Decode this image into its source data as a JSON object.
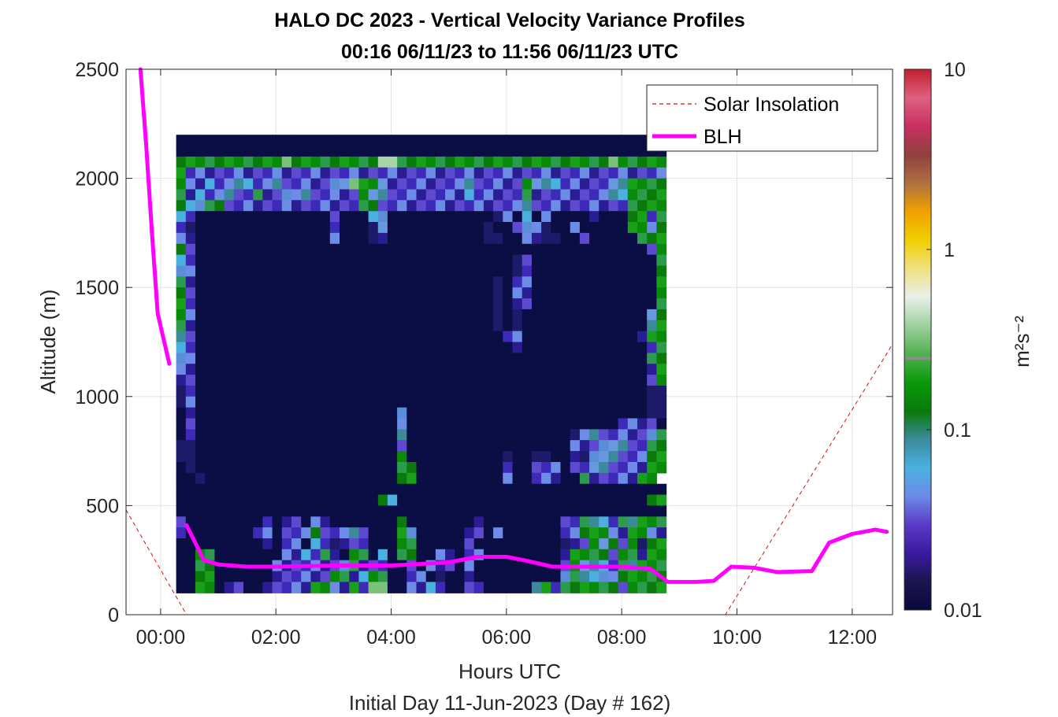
{
  "chart_data": {
    "type": "heatmap",
    "title": "HALO DC 2023 - Vertical Velocity Variance Profiles",
    "subtitle": "00:16 06/11/23 to 11:56 06/11/23  UTC",
    "xlabel": "Hours UTC",
    "xlabel2": "Initial Day 11-Jun-2023 (Day # 162)",
    "ylabel": "Altitude (m)",
    "xlim": [
      -0.6,
      12.7
    ],
    "ylim": [
      0,
      2500
    ],
    "x_ticks": [
      0,
      2,
      4,
      6,
      8,
      10,
      12
    ],
    "x_tick_labels": [
      "00:00",
      "02:00",
      "04:00",
      "06:00",
      "08:00",
      "10:00",
      "12:00"
    ],
    "y_ticks": [
      0,
      500,
      1000,
      1500,
      2000,
      2500
    ],
    "y_tick_labels": [
      "0",
      "500",
      "1000",
      "1500",
      "2000",
      "2500"
    ],
    "grid": true,
    "colorbar": {
      "label": "m²s⁻²",
      "scale": "log",
      "range": [
        0.01,
        10
      ],
      "tick_values": [
        0.01,
        0.1,
        1,
        10
      ],
      "tick_labels": [
        "0.01",
        "0.1",
        "1",
        "10"
      ],
      "colors": [
        "#0a0a3c",
        "#1c1450",
        "#3a1aa0",
        "#5a3ac8",
        "#6c8ce8",
        "#4ab0e0",
        "#3a8a9a",
        "#0a7a0a",
        "#0a9a0a",
        "#50b050",
        "#a0d0a0",
        "#e8f0e8",
        "#f0e080",
        "#f0d000",
        "#f0a000",
        "#b07040",
        "#904040",
        "#c83060",
        "#e06080",
        "#c02030"
      ]
    },
    "heatmap": {
      "x_start": 0.27,
      "x_step": 0.1667,
      "y_start": 100,
      "y_step": 50,
      "rows_bottom_to_top": true,
      "note": "values are log10 of variance (m2 s-2)",
      "grid_rows": [
        "...................................................",
        ".;;;;;;;;;;;;;;;;;;;;;;;;;;;;;;;;;;;;;;;;;;;;;;;;;;",
        "GGGGGGGGGGGHGGGGGGGGGSSGGGGGGGGGGGGGGGGGGGGGGHGGGGG",
        "G%%%%%%%%%%%%%%%%%%%%%%%%%%%%%%%%%%%%%%%%%%%%%%%%%%",
        "G%%T%%TT%%T%%%%%TTHGGT%%%%%%%%T%%%%%GTTT%%%%%TTGGGG",
        "G%T%%T%%G%%T%T%%%%%GTT%%%%%%%%T%%%%%G%%%%%%%%TTGGGG",
        "GTTGG%%%%%%%%%%%%%%GG%%%%%%%%%%%%%%%T%%%%%%%%%%GGGG",
        "T%..............%...TT...........:%.T.%....%...GG%G",
        "%:..............%...:T..........:..%T%:..%.....GG%G",
        "%%..............%...:%..........::..%%::..%.....GGG",
        "G%...............................................%G",
        "T%.................................:%.............G",
        "T%.................................:%.............G",
        "G%...............................:.%%.............G",
        "G%...............................:.%%.............G",
        "G%...............................:.%%.............G",
        "G%...............................:.:.............TG",
        "G%...............................:.:.............TG",
        "T%................................%%............%GG",
        "T%.................................%.............%G",
        "T%...............................................GG",
        "%%...............................................%G",
        "%%...............................................%G",
        ":%...............................................::",
        ":%...............................................::",
        ".%.....................T.........................::",
        ".%.....................%......................%%%%.",
        ".%.....................T.................:%T%%%%%TG",
        "::.....................%.................%%%TTT%%GG",
        "::.....................G..........:..::..%:TTT%%%GG",
        ".:.....................GG.........%..%%%.%%TT%%%%GG",
        "..:....................GG.........%..%%%..G%%%%%GG",
        "...................................................",
        ".....................GT..........................GG",
        "...................................................",
        "%........%.%%.%%.......G.......%........%%GTT%GTGGG",
        "%.......%%.%%%G%%%T%...GT.....%%.%......%%GGG%%GG%%",
        ".........%.%%.T%:%%%...GG.....%.........:%%GTG%G:GG",
        "..GG.......%%T%G%.GG.T.GG..%%.%%........%GGGG%GG%GG",
        "..GG......%%%%%%%TG%%%..%.%%%.%.........%GTTT%GTGGG",
        "..GG......%%%%%%GG%TGG..%%.:..%.........TGTTT%GGGGG",
        "..GG.%%..%%%%%GG%%G%HH..%%T%..%%.....TG%GGGGGG%GGGG"
      ]
    },
    "blh": {
      "name": "BLH",
      "color": "#ff00ff",
      "segments": [
        [
          [
            -0.35,
            2500
          ],
          [
            -0.25,
            2150
          ],
          [
            -0.15,
            1750
          ],
          [
            -0.05,
            1380
          ],
          [
            0.15,
            1150
          ]
        ],
        [
          [
            0.45,
            410
          ],
          [
            0.75,
            250
          ],
          [
            1.0,
            230
          ],
          [
            1.5,
            220
          ],
          [
            2.0,
            220
          ],
          [
            3.0,
            225
          ],
          [
            4.0,
            225
          ],
          [
            5.0,
            240
          ],
          [
            5.5,
            265
          ],
          [
            6.0,
            265
          ],
          [
            6.3,
            250
          ],
          [
            6.8,
            220
          ],
          [
            7.3,
            220
          ],
          [
            8.0,
            220
          ],
          [
            8.5,
            210
          ],
          [
            8.8,
            150
          ],
          [
            9.3,
            150
          ],
          [
            9.6,
            155
          ],
          [
            9.9,
            220
          ],
          [
            10.3,
            215
          ],
          [
            10.7,
            195
          ],
          [
            11.3,
            200
          ],
          [
            11.6,
            330
          ],
          [
            12.0,
            370
          ],
          [
            12.4,
            390
          ],
          [
            12.6,
            380
          ]
        ]
      ]
    },
    "solar": {
      "name": "Solar Insolation",
      "color": "#d81010",
      "points": [
        [
          -0.6,
          480
        ],
        [
          0.45,
          0
        ],
        [
          9.8,
          0
        ],
        [
          12.7,
          1240
        ]
      ]
    }
  }
}
